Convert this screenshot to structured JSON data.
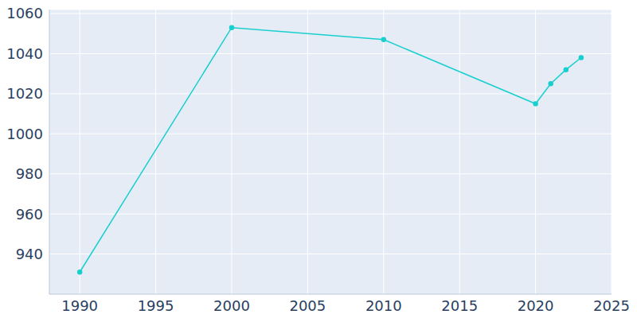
{
  "chart_data": {
    "type": "line",
    "x": [
      1990,
      2000,
      2010,
      2020,
      2021,
      2022,
      2023
    ],
    "values": [
      931,
      1053,
      1047,
      1015,
      1025,
      1032,
      1038
    ],
    "color": "#17cfcf",
    "marker": "circle",
    "xlim": [
      1988,
      2025
    ],
    "xticks": [
      1990,
      1995,
      2000,
      2005,
      2010,
      2015,
      2020,
      2025
    ],
    "ylim": [
      920,
      1062
    ],
    "yticks": [
      940,
      960,
      980,
      1000,
      1020,
      1040,
      1060
    ],
    "grid": true
  }
}
